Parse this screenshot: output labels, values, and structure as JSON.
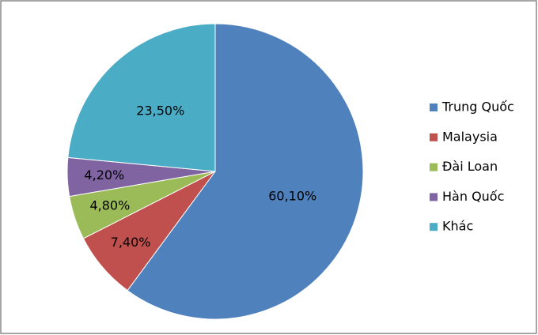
{
  "chart_data": {
    "type": "pie",
    "categories": [
      "Trung Quốc",
      "Malaysia",
      "Đài Loan",
      "Hàn Quốc",
      "Khác"
    ],
    "values": [
      60.1,
      7.4,
      4.8,
      4.2,
      23.5
    ],
    "value_labels": [
      "60,10%",
      "7,40%",
      "4,80%",
      "4,20%",
      "23,50%"
    ],
    "colors": [
      "#4f81bd",
      "#c0504d",
      "#9bbb59",
      "#8064a2",
      "#4bacc6"
    ],
    "legend": "right"
  }
}
